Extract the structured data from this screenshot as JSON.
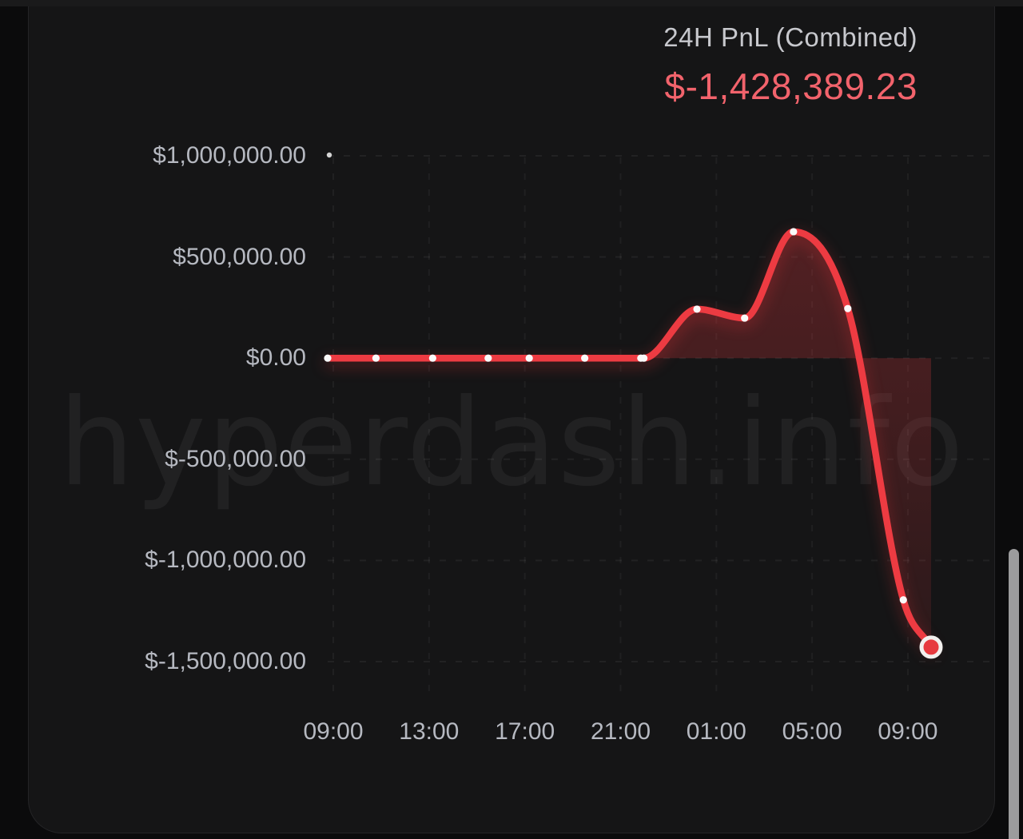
{
  "header": {
    "title": "24H PnL (Combined)",
    "value": "$-1,428,389.23",
    "value_color": "#f2636c",
    "title_color": "#c7c8cd"
  },
  "watermark": {
    "text": "hyperdash.info"
  },
  "scrollbar": {
    "visible": true
  },
  "chart_data": {
    "type": "line",
    "title": "24H PnL (Combined)",
    "current_value_label": "$-1,428,389.23",
    "current_value": -1428389.23,
    "ylim": [
      -1500000,
      1000000
    ],
    "grid": "dashed horizontal and vertical, very faint",
    "legend": "none",
    "line_color": "#ed3b42",
    "area_fill_color": "rgba(234,59,65,0.28)",
    "marker_color": "#fafafa",
    "last_marker_color": "#e73a3f",
    "y_ticks": [
      {
        "label": "$1,000,000.00",
        "value": 1000000
      },
      {
        "label": "$500,000.00",
        "value": 500000
      },
      {
        "label": "$0.00",
        "value": 0
      },
      {
        "label": "$-500,000.00",
        "value": -500000
      },
      {
        "label": "$-1,000,000.00",
        "value": -1000000
      },
      {
        "label": "$-1,500,000.00",
        "value": -1500000
      }
    ],
    "x_ticks": [
      "09:00",
      "13:00",
      "17:00",
      "21:00",
      "01:00",
      "05:00",
      "09:00"
    ],
    "series": [
      {
        "name": "24H PnL (Combined)",
        "points": [
          {
            "time": "08:45",
            "value": 0,
            "fx": 0.0
          },
          {
            "time": "10:45",
            "value": 0,
            "fx": 0.08
          },
          {
            "time": "13:10",
            "value": 0,
            "fx": 0.174
          },
          {
            "time": "15:30",
            "value": 0,
            "fx": 0.266
          },
          {
            "time": "17:10",
            "value": 0,
            "fx": 0.334
          },
          {
            "time": "19:30",
            "value": 0,
            "fx": 0.426
          },
          {
            "time": "21:50",
            "value": 0,
            "fx": 0.519
          },
          {
            "time": "22:00",
            "value": 0,
            "fx": 0.524
          },
          {
            "time": "00:10",
            "value": 242000,
            "fx": 0.612
          },
          {
            "time": "02:10",
            "value": 198000,
            "fx": 0.691
          },
          {
            "time": "04:15",
            "value": 625000,
            "fx": 0.772
          },
          {
            "time": "06:30",
            "value": 245000,
            "fx": 0.862
          },
          {
            "time": "08:50",
            "value": -1195000,
            "fx": 0.954
          },
          {
            "time": "10:00",
            "value": -1428389.23,
            "fx": 1.0
          }
        ]
      }
    ]
  }
}
